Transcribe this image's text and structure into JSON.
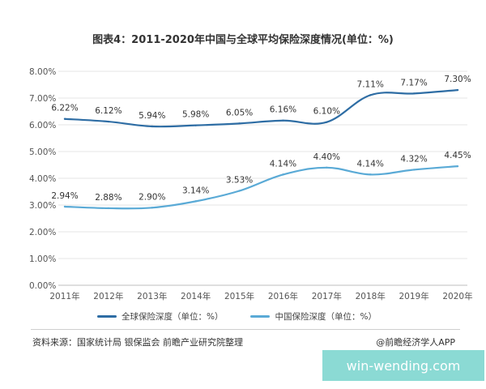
{
  "colors": {
    "global": "#2e6da4",
    "china": "#5aaad6",
    "grid": "#e6e6e6"
  },
  "footer": {
    "source": "资料来源：国家统计局 银保监会 前瞻产业研究院整理",
    "brand": "@前瞻经济学人APP"
  },
  "watermark": {
    "text": "win-wending.com"
  },
  "chart_data": {
    "type": "line",
    "title": "图表4：2011-2020年中国与全球平均保险深度情况(单位：%)",
    "categories": [
      "2011年",
      "2012年",
      "2013年",
      "2014年",
      "2015年",
      "2016年",
      "2017年",
      "2018年",
      "2019年",
      "2020年"
    ],
    "ylim": [
      0,
      8
    ],
    "yticks": [
      "0.00%",
      "1.00%",
      "2.00%",
      "3.00%",
      "4.00%",
      "5.00%",
      "6.00%",
      "7.00%",
      "8.00%"
    ],
    "grid": true,
    "legend_position": "bottom",
    "series": [
      {
        "name": "全球保险深度（单位：%）",
        "values": [
          6.22,
          6.12,
          5.94,
          5.98,
          6.05,
          6.16,
          6.1,
          7.11,
          7.17,
          7.3
        ],
        "labels": [
          "6.22%",
          "6.12%",
          "5.94%",
          "5.98%",
          "6.05%",
          "6.16%",
          "6.10%",
          "7.11%",
          "7.17%",
          "7.30%"
        ],
        "color": "#2e6da4"
      },
      {
        "name": "中国保险深度（单位：%）",
        "values": [
          2.94,
          2.88,
          2.9,
          3.14,
          3.53,
          4.14,
          4.4,
          4.14,
          4.32,
          4.45
        ],
        "labels": [
          "2.94%",
          "2.88%",
          "2.90%",
          "3.14%",
          "3.53%",
          "4.14%",
          "4.40%",
          "4.14%",
          "4.32%",
          "4.45%"
        ],
        "color": "#5aaad6"
      }
    ]
  }
}
